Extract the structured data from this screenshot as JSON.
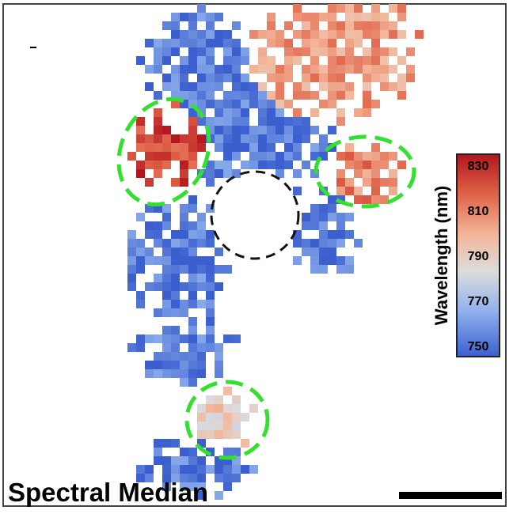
{
  "chart_data": {
    "type": "heatmap",
    "panel_label": "Spectral Median",
    "colorbar": {
      "title": "Wavelength (nm)",
      "range": [
        745,
        835
      ],
      "ticks": [
        "830",
        "810",
        "790",
        "770",
        "750"
      ],
      "colors": [
        "#3b5fcf",
        "#8fb0ec",
        "#dcdcdc",
        "#f3b79b",
        "#e0644a",
        "#b3141e"
      ]
    },
    "regions": [
      {
        "id": "upper-right-plume",
        "typical_wavelength_nm": 805
      },
      {
        "id": "left-lobe",
        "typical_wavelength_nm": 825
      },
      {
        "id": "right-lobe",
        "typical_wavelength_nm": 810
      },
      {
        "id": "central-column",
        "typical_wavelength_nm": 752
      },
      {
        "id": "lower-lobe",
        "typical_wavelength_nm": 790
      }
    ],
    "annotations": [
      "dashed-green-circle",
      "dashed-green-circle",
      "dashed-green-circle",
      "dashed-black-circle"
    ],
    "scale_bar": {
      "label": ""
    },
    "grid": false
  }
}
